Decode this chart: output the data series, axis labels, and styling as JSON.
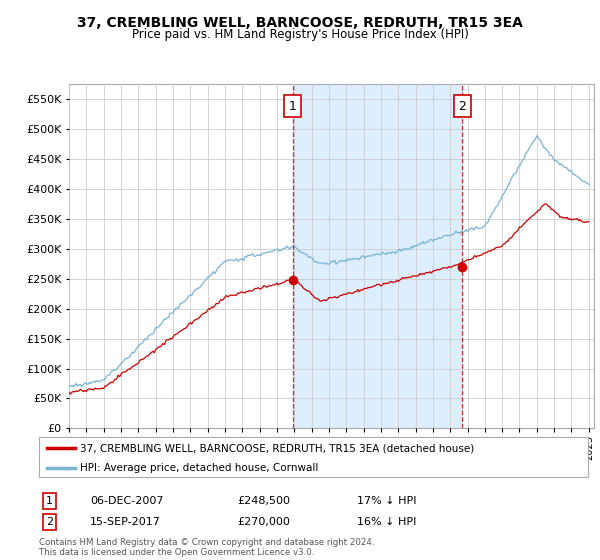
{
  "title": "37, CREMBLING WELL, BARNCOOSE, REDRUTH, TR15 3EA",
  "subtitle": "Price paid vs. HM Land Registry's House Price Index (HPI)",
  "ylim": [
    0,
    575000
  ],
  "yticks": [
    0,
    50000,
    100000,
    150000,
    200000,
    250000,
    300000,
    350000,
    400000,
    450000,
    500000,
    550000
  ],
  "legend_line1": "37, CREMBLING WELL, BARNCOOSE, REDRUTH, TR15 3EA (detached house)",
  "legend_line2": "HPI: Average price, detached house, Cornwall",
  "annotation1_label": "1",
  "annotation1_date": "06-DEC-2007",
  "annotation1_price": "£248,500",
  "annotation1_hpi": "17% ↓ HPI",
  "annotation2_label": "2",
  "annotation2_date": "15-SEP-2017",
  "annotation2_price": "£270,000",
  "annotation2_hpi": "16% ↓ HPI",
  "footer": "Contains HM Land Registry data © Crown copyright and database right 2024.\nThis data is licensed under the Open Government Licence v3.0.",
  "line_color_red": "#cc0000",
  "line_color_blue": "#7ab4d4",
  "shade_color": "#ddeeff",
  "annotation_color": "#cc0000",
  "background_color": "#ffffff",
  "grid_color": "#cccccc",
  "sale1_year": 2007.917,
  "sale2_year": 2017.708,
  "sale1_price": 248500,
  "sale2_price": 270000
}
